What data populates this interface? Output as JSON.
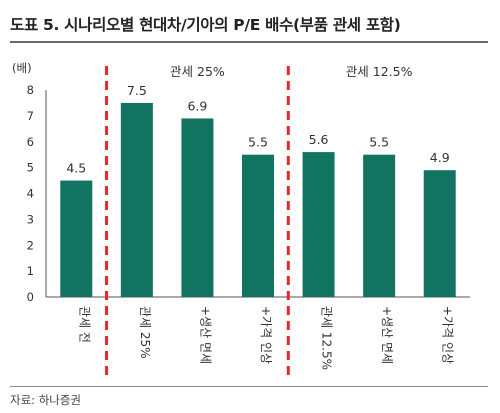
{
  "header": {
    "title": "도표 5. 시나리오별 현대차/기아의 P/E 배수(부품 관세 포함)",
    "source": "자료: 하나증권"
  },
  "chart_data": {
    "type": "bar",
    "unit_label": "(배)",
    "categories": [
      "관세 전",
      "관세 25%",
      "+생산 면세",
      "+가격 인상",
      "관세 12.5%",
      "+생산 면세",
      "+가격 인상"
    ],
    "values": [
      4.5,
      7.5,
      6.9,
      5.5,
      5.6,
      5.5,
      4.9
    ],
    "value_labels": [
      "4.5",
      "7.5",
      "6.9",
      "5.5",
      "5.6",
      "5.5",
      "4.9"
    ],
    "y_ticks": [
      "0",
      "1",
      "2",
      "3",
      "4",
      "5",
      "6",
      "7",
      "8"
    ],
    "ylim": [
      0,
      8
    ],
    "grid": false,
    "bar_color": "#127460",
    "divider_color": "#e8262c",
    "groups": [
      {
        "label": "관세 25%",
        "from": 1,
        "to": 3
      },
      {
        "label": "관세 12.5%",
        "from": 4,
        "to": 6
      }
    ],
    "dividers_after_index": [
      0,
      3
    ]
  }
}
